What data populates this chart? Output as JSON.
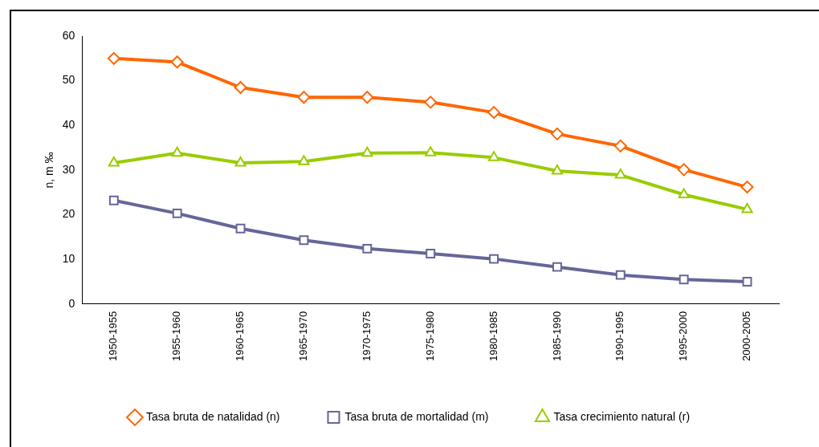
{
  "chart_data": {
    "type": "line",
    "ylabel": "n, m ‰",
    "categories": [
      "1950-1955",
      "1955-1960",
      "1960-1965",
      "1965-1970",
      "1970-1975",
      "1975-1980",
      "1980-1985",
      "1985-1990",
      "1990-1995",
      "1995-2000",
      "2000-2005"
    ],
    "series": [
      {
        "name": "Tasa bruta de natalidad (n)",
        "color": "#ff6600",
        "marker": "diamond",
        "values": [
          55.0,
          54.2,
          48.5,
          46.3,
          46.3,
          45.2,
          42.9,
          38.1,
          35.4,
          30.1,
          26.2
        ]
      },
      {
        "name": "Tasa bruta de mortalidad (m)",
        "color": "#666699",
        "marker": "square",
        "values": [
          23.2,
          20.3,
          16.9,
          14.3,
          12.4,
          11.3,
          10.1,
          8.3,
          6.5,
          5.5,
          5.0
        ]
      },
      {
        "name": "Tasa crecimiento natural (r)",
        "color": "#99cc00",
        "marker": "triangle",
        "values": [
          31.6,
          33.8,
          31.6,
          31.9,
          33.8,
          33.9,
          32.8,
          29.8,
          28.9,
          24.5,
          21.2
        ]
      }
    ],
    "ylim": [
      0,
      60
    ],
    "yticks": [
      0,
      10,
      20,
      30,
      40,
      50,
      60
    ],
    "grid": false,
    "legend": "bottom",
    "line_style": "solid"
  }
}
